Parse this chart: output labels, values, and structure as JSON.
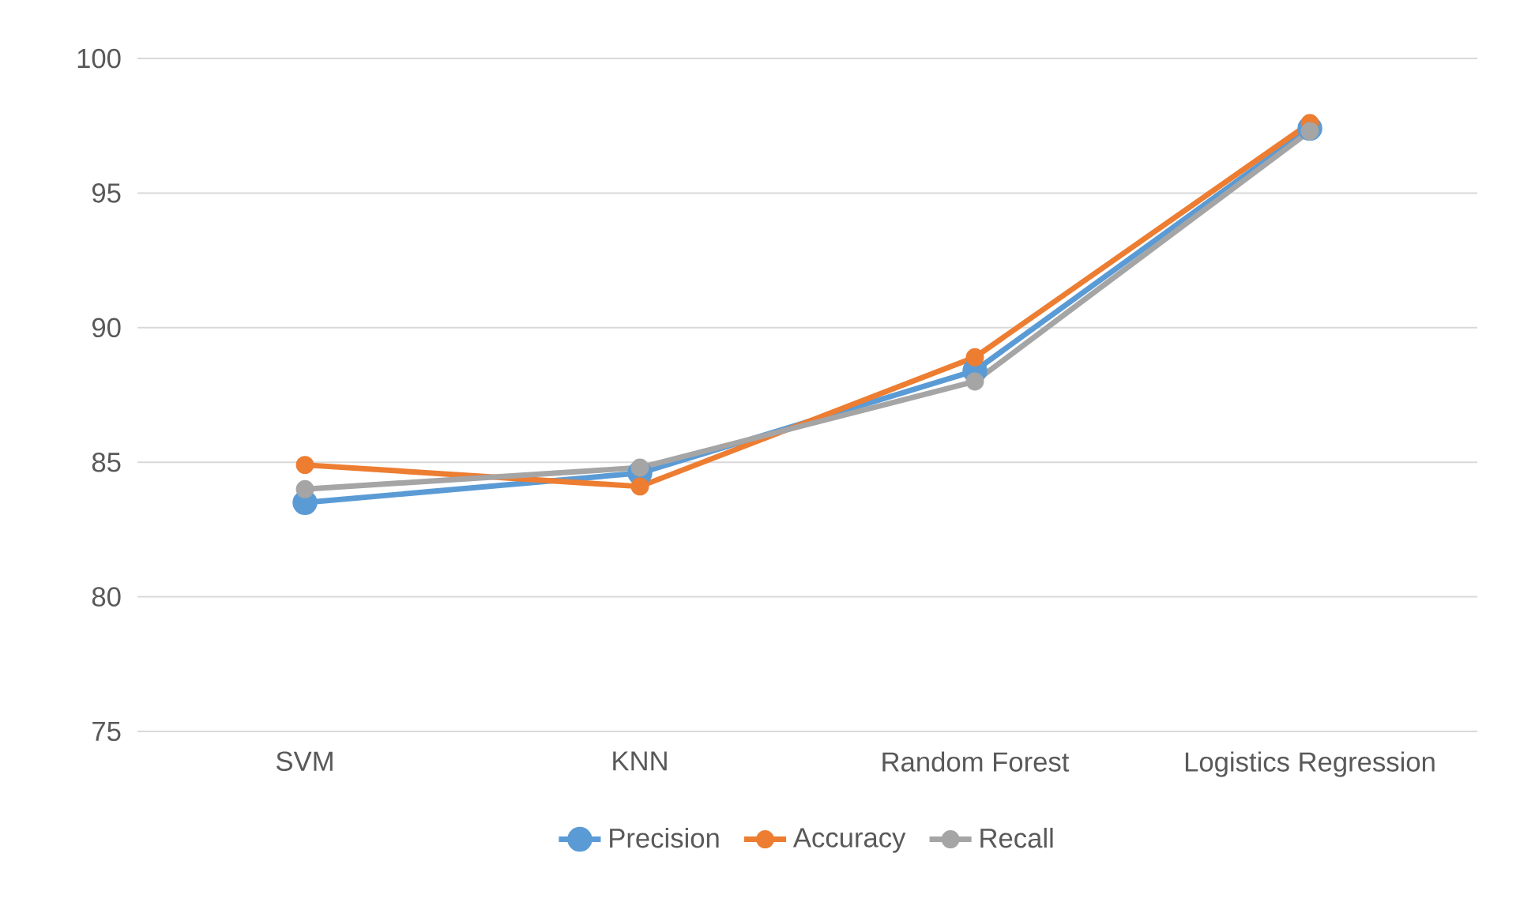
{
  "chart_data": {
    "type": "line",
    "categories": [
      "SVM",
      "KNN",
      "Random Forest",
      "Logistics Regression"
    ],
    "series": [
      {
        "name": "Precision",
        "color": "#5b9bd5",
        "values": [
          83.5,
          84.6,
          88.4,
          97.4
        ]
      },
      {
        "name": "Accuracy",
        "color": "#ed7d31",
        "values": [
          84.9,
          84.1,
          88.9,
          97.6
        ]
      },
      {
        "name": "Recall",
        "color": "#a5a5a5",
        "values": [
          84.0,
          84.8,
          88.0,
          97.3
        ]
      }
    ],
    "ylim": [
      75,
      100
    ],
    "yticks": [
      75,
      80,
      85,
      90,
      95,
      100
    ],
    "grid": "y",
    "legend": "bottom",
    "marker": "circle",
    "line_style": "solid"
  }
}
